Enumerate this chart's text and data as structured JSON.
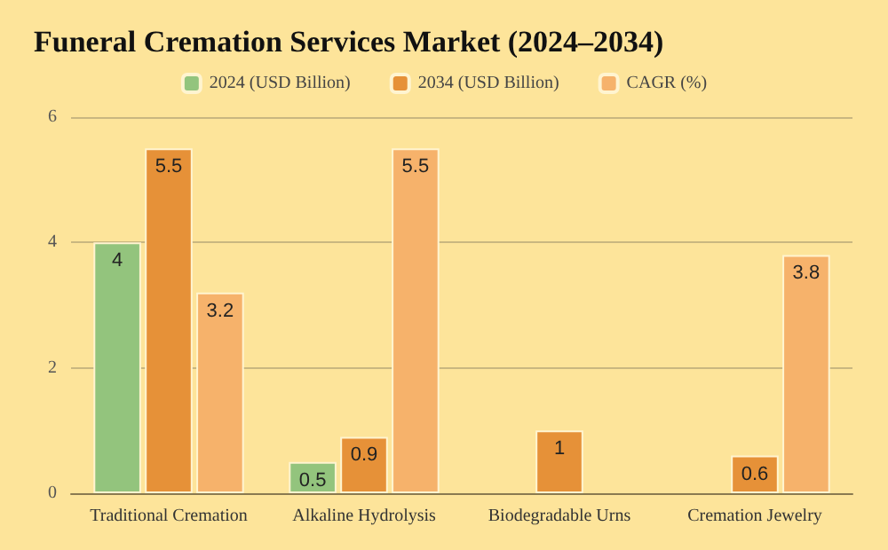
{
  "chart_data": {
    "type": "bar",
    "title": "Funeral Cremation Services Market (2024–2034)",
    "categories": [
      "Traditional Cremation",
      "Alkaline Hydrolysis",
      "Biodegradable Urns",
      "Cremation Jewelry"
    ],
    "series": [
      {
        "name": "2024 (USD Billion)",
        "color": "#93c47d",
        "values": [
          4,
          0.5,
          null,
          null
        ]
      },
      {
        "name": "2034 (USD Billion)",
        "color": "#e69138",
        "values": [
          5.5,
          0.9,
          1,
          0.6
        ]
      },
      {
        "name": "CAGR (%)",
        "color": "#f6b26b",
        "values": [
          3.2,
          5.5,
          null,
          3.8
        ]
      }
    ],
    "ylim": [
      0,
      6
    ],
    "yticks": [
      0,
      2,
      4,
      6
    ],
    "grid": "y",
    "legend": "top",
    "data_labels": true
  }
}
